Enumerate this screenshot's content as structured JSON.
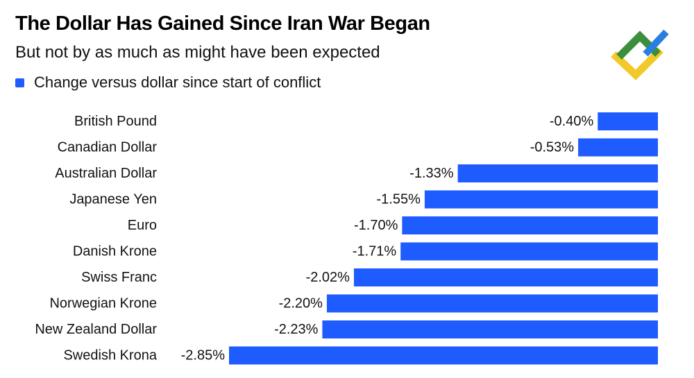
{
  "header": {
    "title": "The Dollar Has Gained Since Iran War Began",
    "subtitle": "But not by as much as might have been expected"
  },
  "legend": {
    "label": "Change versus dollar since start of conflict",
    "color": "#1f5cff"
  },
  "logo": {
    "icon": "chevron-arrows-logo",
    "colors": [
      "#3b8f3a",
      "#f2c928",
      "#2a7de1"
    ]
  },
  "chart_data": {
    "type": "bar",
    "orientation": "horizontal",
    "categories": [
      "British Pound",
      "Canadian Dollar",
      "Australian Dollar",
      "Japanese Yen",
      "Euro",
      "Danish Krone",
      "Swiss Franc",
      "Norwegian Krone",
      "New Zealand Dollar",
      "Swedish Krona"
    ],
    "values": [
      -0.4,
      -0.53,
      -1.33,
      -1.55,
      -1.7,
      -1.71,
      -2.02,
      -2.2,
      -2.23,
      -2.85
    ],
    "value_labels": [
      "-0.40%",
      "-0.53%",
      "-1.33%",
      "-1.55%",
      "-1.70%",
      "-1.71%",
      "-2.02%",
      "-2.20%",
      "-2.23%",
      "-2.85%"
    ],
    "series": [
      {
        "name": "Change versus dollar since start of conflict",
        "color": "#1f5cff"
      }
    ],
    "xlim": [
      -2.85,
      0
    ],
    "grid": false,
    "legend_position": "top-left"
  }
}
